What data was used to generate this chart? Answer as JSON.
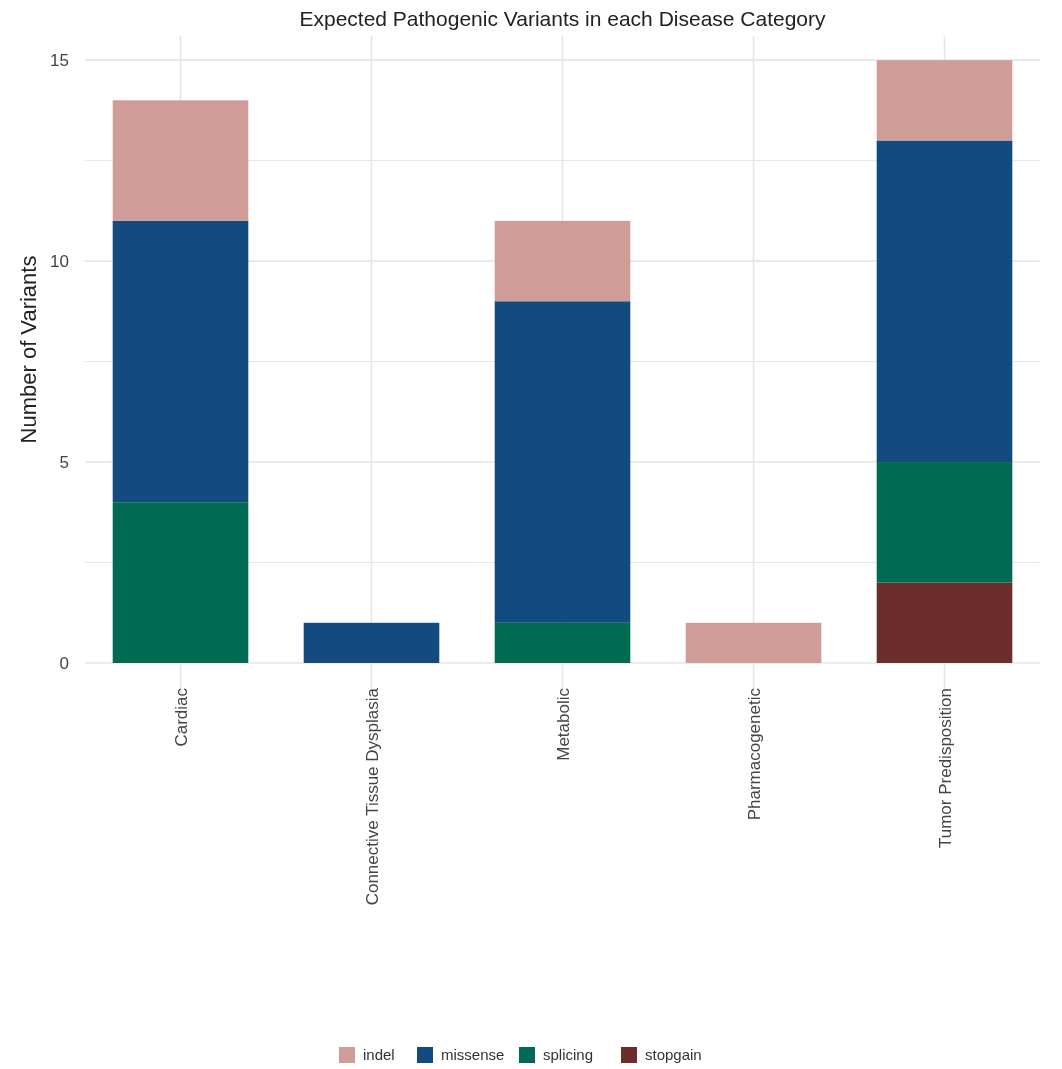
{
  "chart_data": {
    "type": "bar",
    "title": "Expected Pathogenic Variants in each Disease Category",
    "ylabel": "Number of Variants",
    "categories": [
      "Cardiac",
      "Connective Tissue Dysplasia",
      "Metabolic",
      "Pharmacogenetic",
      "Tumor Predisposition"
    ],
    "stacked": true,
    "series": [
      {
        "name": "stopgain",
        "color": "#6b2e2a",
        "values": [
          0,
          0,
          0,
          0,
          2
        ]
      },
      {
        "name": "splicing",
        "color": "#006b52",
        "values": [
          4,
          0,
          1,
          0,
          3
        ]
      },
      {
        "name": "missense",
        "color": "#134b7f",
        "values": [
          7,
          1,
          8,
          0,
          8
        ]
      },
      {
        "name": "indel",
        "color": "#d09c97",
        "values": [
          3,
          0,
          2,
          1,
          2
        ]
      }
    ],
    "ylim": [
      0,
      15.6
    ],
    "yticks": [
      0,
      {
        "value": 2.5,
        "label": null
      },
      5,
      {
        "value": 7.5,
        "label": null
      },
      10,
      {
        "value": 12.5,
        "label": null
      },
      15
    ],
    "grid": true,
    "legend": "bottom"
  }
}
